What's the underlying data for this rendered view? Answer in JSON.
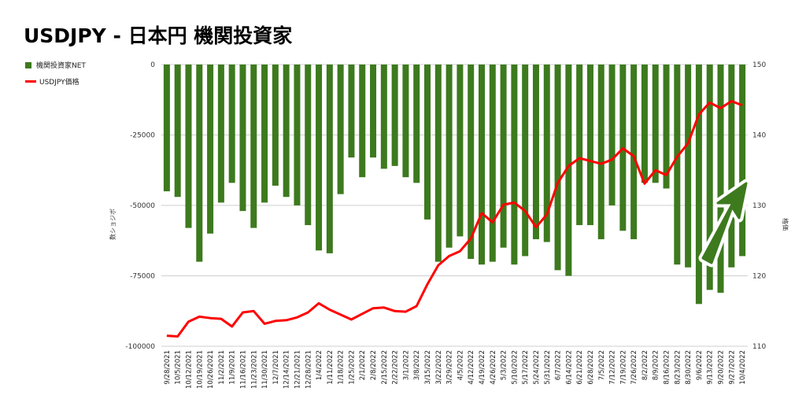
{
  "title": "USDJPY - 日本円 機関投資家",
  "legend": {
    "bar_label": "機関投資家NET",
    "line_label": "USDJPY価格",
    "bar_color": "#3d7a1e",
    "line_color": "#ff0000"
  },
  "chart_data": {
    "type": "bar",
    "title": "USDJPY - 日本円 機関投資家",
    "ylabel_left": "数ショジボ",
    "ylabel_right": "格価",
    "left_axis": {
      "min": -100000,
      "max": 0,
      "ticks": [
        "0",
        "-25000",
        "-50000",
        "-75000",
        "-100000"
      ]
    },
    "right_axis": {
      "min": 110,
      "max": 150,
      "ticks": [
        "150",
        "140",
        "130",
        "120",
        "110"
      ]
    },
    "categories": [
      "9/28/2021",
      "10/5/2021",
      "10/12/2021",
      "10/19/2021",
      "10/26/2021",
      "11/2/2021",
      "11/9/2021",
      "11/16/2021",
      "11/23/2021",
      "11/30/2021",
      "12/7/2021",
      "12/14/2021",
      "12/21/2021",
      "12/28/2021",
      "1/4/2022",
      "1/11/2022",
      "1/18/2022",
      "1/25/2022",
      "2/1/2022",
      "2/8/2022",
      "2/15/2022",
      "2/22/2022",
      "3/1/2022",
      "3/8/2022",
      "3/15/2022",
      "3/22/2022",
      "3/29/2022",
      "4/5/2022",
      "4/12/2022",
      "4/19/2022",
      "4/26/2022",
      "5/3/2022",
      "5/10/2022",
      "5/17/2022",
      "5/24/2022",
      "5/31/2022",
      "6/7/2022",
      "6/14/2022",
      "6/21/2022",
      "6/28/2022",
      "7/5/2022",
      "7/12/2022",
      "7/19/2022",
      "7/26/2022",
      "8/2/2022",
      "8/9/2022",
      "8/16/2022",
      "8/23/2022",
      "8/30/2022",
      "9/6/2022",
      "9/13/2022",
      "9/20/2022",
      "9/27/2022",
      "10/4/2022"
    ],
    "x_tick_labels": [
      "9/28/2021",
      "10/5/2021",
      "10/12/2021",
      "10/19/2021",
      "10/26/2021",
      "11/2/2021",
      "11/9/2021",
      "11/16/2021",
      "11/23/2021",
      "11/30/2021",
      "12/7/2021",
      "12/14/2021",
      "12/21/2021",
      "12/28/2021",
      "1/4/2022",
      "1/11/2022",
      "1/18/2022",
      "1/25/2022",
      "2/1/2022",
      "2/8/2022",
      "2/15/2022",
      "2/22/2022",
      "3/1/2022",
      "3/8/2022",
      "3/15/2022",
      "3/22/2022",
      "3/29/2022",
      "4/5/2022",
      "4/12/2022",
      "4/19/2022",
      "4/26/2022",
      "5/3/2022",
      "5/10/2022",
      "5/17/2022",
      "5/24/2022",
      "5/31/2022",
      "6/7/2022",
      "6/14/2022",
      "6/21/2022",
      "6/28/2022",
      "7/5/2022",
      "7/12/2022",
      "7/19/2022",
      "7/26/2022",
      "8/2/2022",
      "8/9/2022",
      "8/16/2022",
      "8/23/2022",
      "8/30/2022",
      "9/6/2022",
      "9/13/2022",
      "9/20/2022",
      "9/27/2022",
      "10/4/2022"
    ],
    "series": [
      {
        "name": "機関投資家NET",
        "type": "bar",
        "axis": "left",
        "values": [
          -45000,
          -47000,
          -58000,
          -70000,
          -60000,
          -49000,
          -42000,
          -52000,
          -58000,
          -49000,
          -43000,
          -47000,
          -50000,
          -57000,
          -66000,
          -67000,
          -46000,
          -33000,
          -40000,
          -33000,
          -37000,
          -36000,
          -40000,
          -42000,
          -55000,
          -70000,
          -65000,
          -61000,
          -69000,
          -71000,
          -70000,
          -65000,
          -71000,
          -68000,
          -62000,
          -63000,
          -73000,
          -75000,
          -57000,
          -57000,
          -62000,
          -50000,
          -59000,
          -62000,
          -42000,
          -42000,
          -44000,
          -71000,
          -72000,
          -85000,
          -80000,
          -81000,
          -72000,
          -68000
        ]
      },
      {
        "name": "USDJPY価格",
        "type": "line",
        "axis": "right",
        "values": [
          111.5,
          111.4,
          113.5,
          114.2,
          114.0,
          113.9,
          112.8,
          114.8,
          115.0,
          113.2,
          113.6,
          113.7,
          114.1,
          114.8,
          116.1,
          115.2,
          114.5,
          113.8,
          114.6,
          115.4,
          115.5,
          115.0,
          114.9,
          115.7,
          118.8,
          121.5,
          122.8,
          123.5,
          125.3,
          128.9,
          127.6,
          130.1,
          130.4,
          129.2,
          126.9,
          128.7,
          133.2,
          135.6,
          136.7,
          136.3,
          135.9,
          136.5,
          138.1,
          137.0,
          133.1,
          135.0,
          134.3,
          136.9,
          138.8,
          142.9,
          144.6,
          143.8,
          144.8,
          144.2
        ]
      }
    ],
    "grid": true,
    "legend_position": "top-left"
  }
}
